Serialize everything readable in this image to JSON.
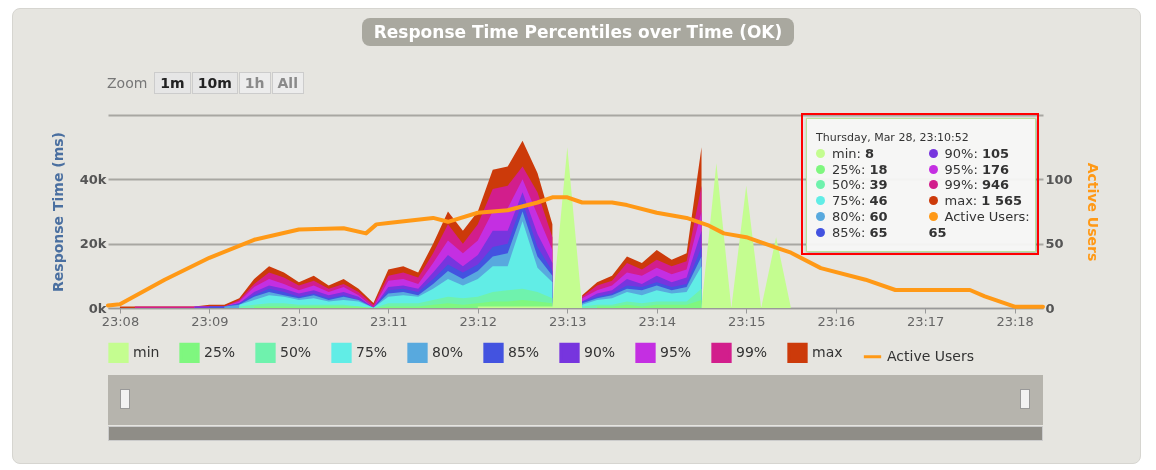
{
  "chart_data": {
    "type": "area",
    "title": "Response Time Percentiles over Time (OK)",
    "ylabel": "Response Time (ms)",
    "y2label": "Active Users",
    "x": [
      23.13333,
      23.13611,
      23.13889,
      23.14167,
      23.14444,
      23.14722,
      23.15,
      23.15278,
      23.15556,
      23.15833,
      23.16111,
      23.16389,
      23.16667,
      23.16944,
      23.17222,
      23.175,
      23.17778,
      23.18056,
      23.18333,
      23.18611,
      23.18889,
      23.19167,
      23.19444,
      23.19722,
      23.2,
      23.20278,
      23.20556,
      23.20833,
      23.21111,
      23.21389,
      23.21667,
      23.21944,
      23.22222,
      23.225,
      23.22778,
      23.23056,
      23.23333,
      23.23611,
      23.23889,
      23.24167,
      23.24444,
      23.24722,
      23.25,
      23.25278,
      23.25556,
      23.25833
    ],
    "series": [
      {
        "name": "max",
        "color": "#cc3a0a",
        "values": [
          500,
          500,
          500,
          500,
          500,
          500,
          1000,
          1000,
          3000,
          9000,
          13000,
          11000,
          8000,
          10000,
          7000,
          9000,
          6000,
          1565,
          12000,
          13000,
          11000,
          20000,
          30000,
          24000,
          30000,
          43000,
          44000,
          52000,
          42000,
          26000,
          null,
          4000,
          8000,
          10000,
          16000,
          14000,
          18000,
          15000,
          17000,
          50000,
          null,
          null,
          null,
          null,
          null,
          null
        ]
      },
      {
        "name": "99%",
        "color": "#d21e8c",
        "values": [
          null,
          500,
          500,
          500,
          500,
          500,
          500,
          500,
          2500,
          7500,
          11000,
          9500,
          7000,
          8500,
          6000,
          7500,
          5000,
          946,
          10000,
          11000,
          9500,
          17000,
          26000,
          20000,
          26000,
          37000,
          38000,
          44000,
          36000,
          22000,
          null,
          3500,
          7000,
          8500,
          14000,
          12000,
          15000,
          13000,
          14500,
          38000,
          null,
          null,
          null,
          null,
          null,
          null
        ]
      },
      {
        "name": "95%",
        "color": "#c42fe2",
        "values": [
          null,
          null,
          null,
          null,
          null,
          500,
          500,
          500,
          2000,
          6500,
          9000,
          7500,
          5500,
          7000,
          5000,
          6500,
          4000,
          176,
          8500,
          9000,
          7500,
          14000,
          21000,
          17000,
          21000,
          30000,
          31000,
          40000,
          29000,
          18000,
          null,
          3000,
          5500,
          7000,
          11000,
          10000,
          12500,
          10500,
          12000,
          30000,
          null,
          null,
          null,
          null,
          null,
          null
        ]
      },
      {
        "name": "90%",
        "color": "#7735de",
        "values": [
          null,
          null,
          null,
          null,
          null,
          500,
          500,
          500,
          1500,
          5000,
          7000,
          6000,
          4500,
          5500,
          4000,
          5000,
          3500,
          105,
          6500,
          7000,
          6000,
          11000,
          16500,
          13000,
          16500,
          24000,
          24000,
          36000,
          23000,
          14000,
          null,
          2000,
          4500,
          5500,
          9000,
          7500,
          10000,
          8000,
          9500,
          24000,
          null,
          null,
          null,
          null,
          null,
          null
        ]
      },
      {
        "name": "85%",
        "color": "#4353e0",
        "values": [
          null,
          null,
          null,
          null,
          null,
          null,
          500,
          500,
          1500,
          4000,
          6000,
          5000,
          3500,
          4500,
          3000,
          4000,
          2500,
          65,
          5500,
          6000,
          5000,
          9000,
          13500,
          11000,
          13500,
          19000,
          20000,
          33000,
          19000,
          11500,
          null,
          2000,
          3500,
          4500,
          7000,
          6500,
          8000,
          6500,
          7500,
          19000,
          null,
          null,
          null,
          null,
          null,
          null
        ]
      },
      {
        "name": "80%",
        "color": "#58a9de",
        "values": [
          null,
          null,
          null,
          null,
          null,
          null,
          null,
          500,
          1000,
          3500,
          5000,
          4000,
          3000,
          4000,
          2500,
          3500,
          2500,
          60,
          4500,
          5000,
          4000,
          7500,
          11500,
          9000,
          11500,
          16000,
          17000,
          30000,
          16000,
          10000,
          null,
          1500,
          3000,
          4000,
          6000,
          5500,
          7000,
          5500,
          6500,
          16000,
          null,
          null,
          null,
          null,
          null,
          null
        ]
      },
      {
        "name": "75%",
        "color": "#61ede6",
        "values": [
          null,
          null,
          null,
          null,
          null,
          null,
          null,
          null,
          1000,
          2500,
          4000,
          3500,
          2500,
          3000,
          2000,
          2500,
          2000,
          46,
          3500,
          4000,
          3500,
          6000,
          9000,
          7000,
          9000,
          13000,
          13000,
          27000,
          12500,
          8000,
          null,
          1000,
          2500,
          3000,
          5000,
          4000,
          5500,
          4500,
          5000,
          13000,
          null,
          null,
          null,
          null,
          null,
          null
        ]
      },
      {
        "name": "50%",
        "color": "#6ff2ad",
        "values": [
          null,
          null,
          null,
          null,
          null,
          null,
          null,
          null,
          500,
          1000,
          1500,
          1500,
          1000,
          1000,
          1000,
          1000,
          500,
          39,
          1500,
          1500,
          1500,
          2500,
          3500,
          3000,
          3500,
          5000,
          5500,
          6000,
          5000,
          3000,
          null,
          500,
          1000,
          1000,
          2000,
          1500,
          2000,
          2000,
          2000,
          6000,
          null,
          null,
          null,
          null,
          null,
          null
        ]
      },
      {
        "name": "25%",
        "color": "#7ff77f",
        "values": [
          null,
          null,
          null,
          null,
          null,
          null,
          null,
          null,
          null,
          500,
          500,
          500,
          500,
          500,
          500,
          500,
          500,
          18,
          500,
          500,
          500,
          1000,
          1500,
          1000,
          1500,
          2000,
          2000,
          2500,
          2000,
          1500,
          null,
          null,
          500,
          500,
          1000,
          500,
          1000,
          1000,
          1000,
          2500,
          null,
          null,
          null,
          null,
          null,
          null
        ]
      },
      {
        "name": "min",
        "color": "#c4fd90",
        "values": [
          null,
          null,
          null,
          null,
          null,
          null,
          null,
          null,
          null,
          null,
          null,
          null,
          null,
          null,
          null,
          null,
          null,
          null,
          null,
          null,
          null,
          null,
          null,
          null,
          500,
          500,
          500,
          500,
          500,
          500,
          50000,
          0,
          null,
          null,
          null,
          null,
          null,
          null,
          null,
          500,
          45000,
          0,
          38000,
          0,
          22000,
          0
        ]
      },
      {
        "name": "Active Users",
        "type": "line",
        "axis": "y2",
        "color": "#ff9916",
        "x": [
          23.13111,
          23.13333,
          23.14167,
          23.15,
          23.15833,
          23.16667,
          23.175,
          23.17917,
          23.18111,
          23.18333,
          23.19167,
          23.19444,
          23.2,
          23.20556,
          23.21111,
          23.21389,
          23.21667,
          23.21944,
          23.225,
          23.22778,
          23.23333,
          23.23889,
          23.24306,
          23.24583,
          23.25,
          23.25556,
          23.25833,
          23.26389,
          23.27222,
          23.27778,
          23.29167,
          23.29444,
          23.3,
          23.30528
        ],
        "values": [
          2,
          3,
          22,
          39,
          53,
          61,
          62,
          58,
          65,
          66,
          70,
          67,
          74,
          76,
          82,
          86,
          86,
          82,
          82,
          80,
          74,
          70,
          64,
          58,
          55,
          47,
          43,
          31,
          22,
          14,
          14,
          9,
          1,
          1
        ]
      }
    ],
    "xlim": [
      23.13111,
      23.30528
    ],
    "xticks": [
      {
        "value": 23.13333,
        "label": "23:08"
      },
      {
        "value": 23.15,
        "label": "23:09"
      },
      {
        "value": 23.16667,
        "label": "23:10"
      },
      {
        "value": 23.18333,
        "label": "23:11"
      },
      {
        "value": 23.2,
        "label": "23:12"
      },
      {
        "value": 23.21667,
        "label": "23:13"
      },
      {
        "value": 23.23333,
        "label": "23:14"
      },
      {
        "value": 23.25,
        "label": "23:15"
      },
      {
        "value": 23.26667,
        "label": "23:16"
      },
      {
        "value": 23.28333,
        "label": "23:17"
      },
      {
        "value": 23.3,
        "label": "23:18"
      }
    ],
    "ylim": [
      0,
      60000
    ],
    "yticks": [
      {
        "value": 0,
        "label": "0k"
      },
      {
        "value": 20000,
        "label": "20k"
      },
      {
        "value": 40000,
        "label": "40k"
      },
      {
        "value": 60000,
        "label": null
      }
    ],
    "y2lim": [
      0,
      150
    ],
    "y2ticks": [
      0,
      50,
      100
    ],
    "grid": "y",
    "legend": "bottom",
    "annotations": [
      "Zoom",
      "1m",
      "10m",
      "1h",
      "All",
      "Thursday, Mar 28, 23:10:52",
      "min: 8",
      "25%: 18",
      "50%: 39",
      "75%: 46",
      "80%: 60",
      "85%: 65",
      "90%: 105",
      "95%: 176",
      "99%: 946",
      "max: 1 565",
      "Active Users: 65"
    ]
  }
}
